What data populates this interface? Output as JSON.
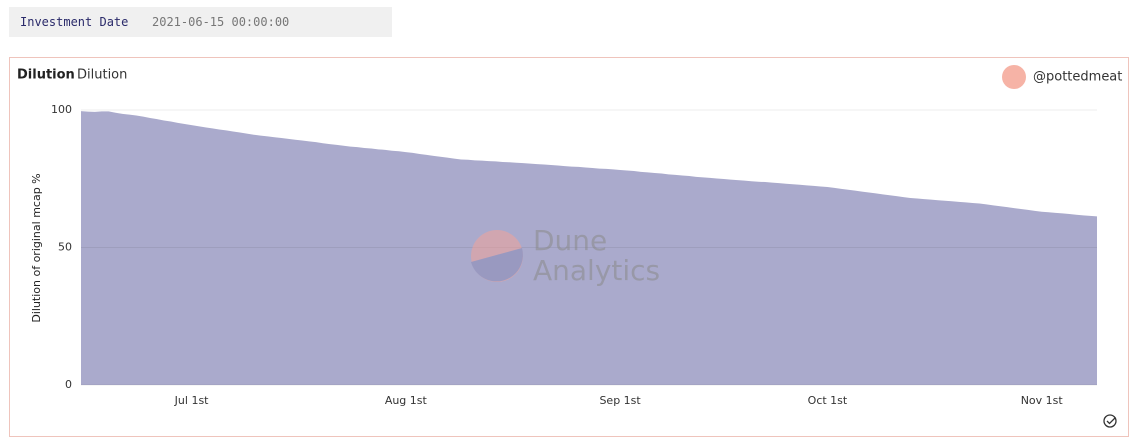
{
  "parameter": {
    "label": "Investment Date",
    "value": "2021-06-15 00:00:00"
  },
  "chart_data": {
    "type": "area",
    "title": "Dilution",
    "subtitle": "Dilution",
    "author": "@pottedmeat",
    "watermark": [
      "Dune",
      "Analytics"
    ],
    "y_label": "Dilution of original mcap %",
    "color": "#aaaacc",
    "grid": true,
    "ylim": [
      0,
      100
    ],
    "yticks": [
      0,
      50,
      100
    ],
    "categories": [
      null,
      null,
      null,
      null,
      null,
      null,
      null,
      null,
      null,
      null,
      null,
      null,
      null,
      null,
      null,
      null,
      "Jul 1st",
      null,
      null,
      null,
      null,
      null,
      null,
      null,
      null,
      null,
      null,
      null,
      null,
      null,
      null,
      null,
      null,
      null,
      null,
      null,
      null,
      null,
      null,
      null,
      null,
      null,
      null,
      null,
      null,
      null,
      null,
      "Aug 1st",
      null,
      null,
      null,
      null,
      null,
      null,
      null,
      null,
      null,
      null,
      null,
      null,
      null,
      null,
      null,
      null,
      null,
      null,
      null,
      null,
      null,
      null,
      null,
      null,
      null,
      null,
      null,
      null,
      null,
      null,
      "Sep 1st",
      null,
      null,
      null,
      null,
      null,
      null,
      null,
      null,
      null,
      null,
      null,
      null,
      null,
      null,
      null,
      null,
      null,
      null,
      null,
      null,
      null,
      null,
      null,
      null,
      null,
      null,
      null,
      null,
      null,
      "Oct 1st",
      null,
      null,
      null,
      null,
      null,
      null,
      null,
      null,
      null,
      null,
      null,
      null,
      null,
      null,
      null,
      null,
      null,
      null,
      null,
      null,
      null,
      null,
      null,
      null,
      null,
      null,
      null,
      null,
      null,
      null,
      "Nov 1st",
      null,
      null,
      null,
      null,
      null,
      null,
      null,
      null
    ],
    "values": [
      99.6,
      99.4,
      99.3,
      99.5,
      99.5,
      99.0,
      98.6,
      98.3,
      98.0,
      97.6,
      97.1,
      96.7,
      96.2,
      95.8,
      95.3,
      94.9,
      94.5,
      94.1,
      93.7,
      93.3,
      92.9,
      92.6,
      92.2,
      91.8,
      91.4,
      91.0,
      90.7,
      90.4,
      90.1,
      89.8,
      89.5,
      89.2,
      88.9,
      88.6,
      88.3,
      87.9,
      87.6,
      87.3,
      87.0,
      86.7,
      86.5,
      86.2,
      86.0,
      85.7,
      85.5,
      85.2,
      85.0,
      84.7,
      84.4,
      84.0,
      83.7,
      83.3,
      83.0,
      82.7,
      82.3,
      82.0,
      81.9,
      81.7,
      81.6,
      81.4,
      81.3,
      81.1,
      81.0,
      80.8,
      80.7,
      80.5,
      80.3,
      80.2,
      80.0,
      79.8,
      79.6,
      79.4,
      79.3,
      79.1,
      78.9,
      78.7,
      78.6,
      78.4,
      78.2,
      78.0,
      77.8,
      77.5,
      77.3,
      77.1,
      76.9,
      76.6,
      76.4,
      76.2,
      76.0,
      75.7,
      75.5,
      75.3,
      75.1,
      74.9,
      74.7,
      74.5,
      74.3,
      74.1,
      73.9,
      73.8,
      73.6,
      73.4,
      73.2,
      73.0,
      72.8,
      72.6,
      72.4,
      72.2,
      72.0,
      71.7,
      71.3,
      71.0,
      70.7,
      70.3,
      70.0,
      69.7,
      69.3,
      69.0,
      68.7,
      68.3,
      68.0,
      67.8,
      67.6,
      67.4,
      67.2,
      67.0,
      66.8,
      66.6,
      66.4,
      66.2,
      66.0,
      65.7,
      65.3,
      65.0,
      64.7,
      64.3,
      64.0,
      63.7,
      63.3,
      63.0,
      62.8,
      62.6,
      62.4,
      62.2,
      61.9,
      61.7,
      61.5,
      61.3
    ]
  }
}
